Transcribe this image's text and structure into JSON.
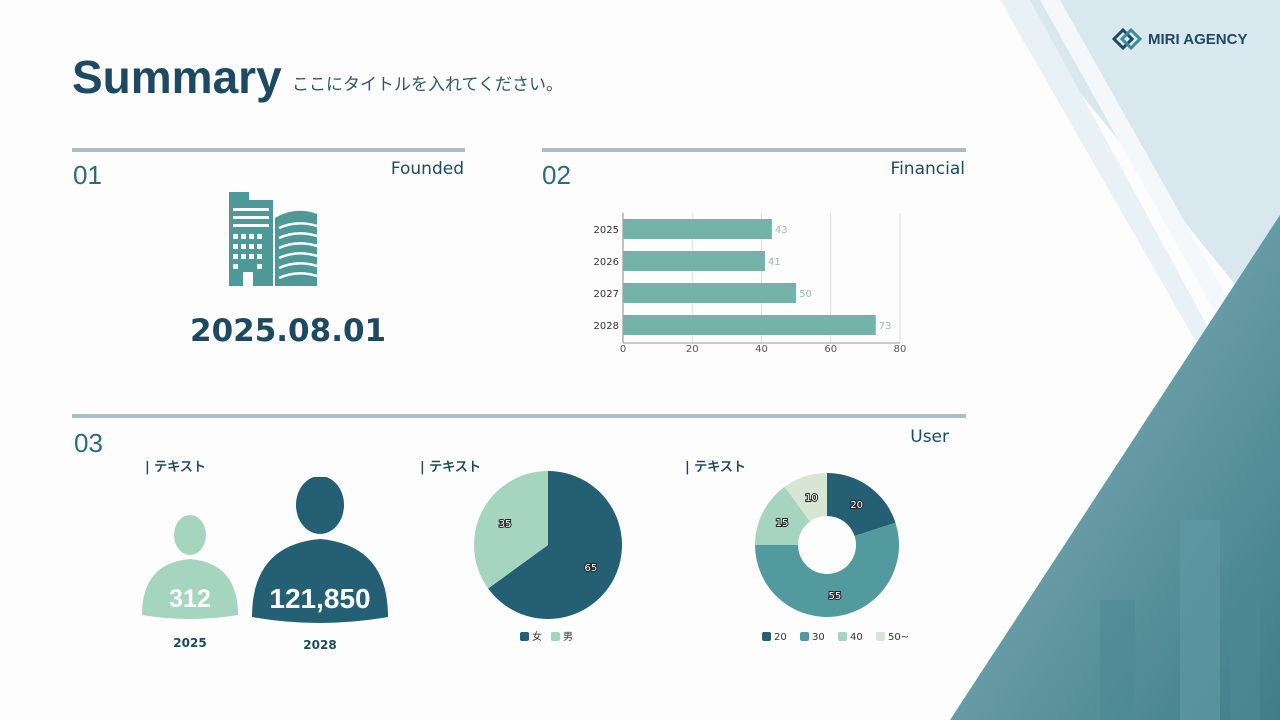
{
  "header": {
    "title": "Summary",
    "subtitle": "ここにタイトルを入れてください。",
    "logo": "MIRI AGENCY"
  },
  "sections": [
    {
      "number": "01",
      "label": "Founded",
      "date": "2025.08.01",
      "icon": "building-icon"
    },
    {
      "number": "02",
      "label": "Financial"
    },
    {
      "number": "03",
      "label": "User"
    }
  ],
  "users": {
    "heading": "テキスト",
    "items": [
      {
        "value": "312",
        "year": "2025"
      },
      {
        "value": "121,850",
        "year": "2028"
      }
    ]
  },
  "colors": {
    "dark": "#245f74",
    "mid": "#539a9e",
    "light": "#a6d5bf",
    "pale": "#d7e6d2",
    "bar": "#74b3aa"
  },
  "chart_data": [
    {
      "type": "bar",
      "orientation": "horizontal",
      "categories": [
        "2025",
        "2026",
        "2027",
        "2028"
      ],
      "values": [
        43,
        41,
        50,
        73
      ],
      "xlim": [
        0,
        80
      ],
      "xticks": [
        0,
        20,
        40,
        60,
        80
      ],
      "grid": true
    },
    {
      "type": "pie",
      "heading": "テキスト",
      "categories": [
        "女",
        "男"
      ],
      "values": [
        65,
        35
      ],
      "legend": "bottom"
    },
    {
      "type": "pie",
      "donut": true,
      "heading": "テキスト",
      "categories": [
        "20",
        "30",
        "40",
        "50~"
      ],
      "values": [
        20,
        55,
        15,
        10
      ],
      "legend": "bottom"
    }
  ]
}
